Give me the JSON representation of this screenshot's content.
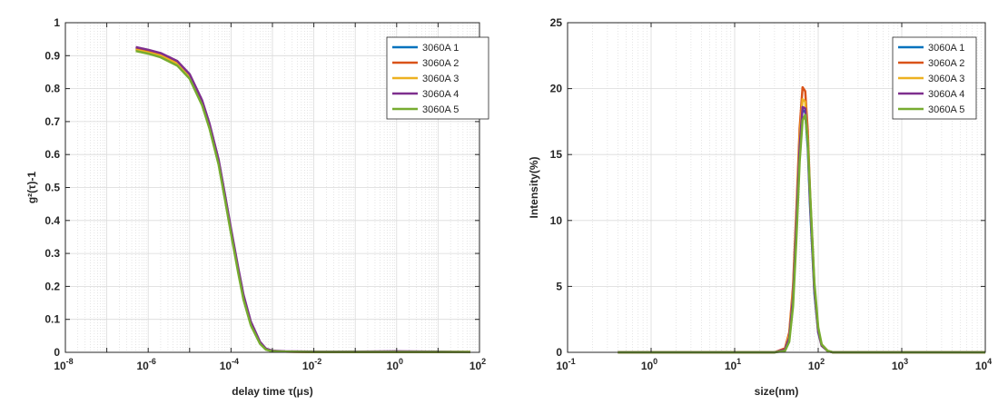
{
  "chart_data": [
    {
      "type": "line",
      "xscale": "log",
      "xlabel": "delay time  τ(μs)",
      "ylabel": "g²(τ)-1",
      "xlim": [
        1e-08,
        100
      ],
      "ylim": [
        0,
        1
      ],
      "grid": true,
      "legend_position": "top-right",
      "x_ticks": [
        {
          "base": "10",
          "exp": "-8"
        },
        {
          "base": "10",
          "exp": "-6"
        },
        {
          "base": "10",
          "exp": "-4"
        },
        {
          "base": "10",
          "exp": "-2"
        },
        {
          "base": "10",
          "exp": "0"
        },
        {
          "base": "10",
          "exp": "2"
        }
      ],
      "y_ticks": [
        "0",
        "0.1",
        "0.2",
        "0.3",
        "0.4",
        "0.5",
        "0.6",
        "0.7",
        "0.8",
        "0.9",
        "1"
      ],
      "series": [
        {
          "name": "3060A 1",
          "color": "#0072BD",
          "x": [
            5e-07,
            1e-06,
            2e-06,
            5e-06,
            1e-05,
            2e-05,
            3e-05,
            5e-05,
            7e-05,
            0.0001,
            0.00015,
            0.0002,
            0.0003,
            0.0005,
            0.0007,
            0.001,
            0.002,
            0.01,
            0.1,
            1,
            15
          ],
          "y": [
            0.923,
            0.915,
            0.905,
            0.88,
            0.84,
            0.76,
            0.69,
            0.58,
            0.48,
            0.37,
            0.25,
            0.17,
            0.09,
            0.03,
            0.01,
            0.004,
            0.002,
            0.002,
            0.001,
            0.002,
            0.001
          ]
        },
        {
          "name": "3060A 2",
          "color": "#D95319",
          "x": [
            5e-07,
            1e-06,
            2e-06,
            5e-06,
            1e-05,
            2e-05,
            3e-05,
            5e-05,
            7e-05,
            0.0001,
            0.00015,
            0.0002,
            0.0003,
            0.0005,
            0.0007,
            0.001,
            0.002,
            0.01,
            0.1,
            1,
            60
          ],
          "y": [
            0.92,
            0.912,
            0.902,
            0.878,
            0.838,
            0.758,
            0.688,
            0.578,
            0.478,
            0.368,
            0.248,
            0.168,
            0.088,
            0.03,
            0.01,
            0.004,
            0.002,
            0.001,
            0.001,
            0.001,
            0.001
          ]
        },
        {
          "name": "3060A 3",
          "color": "#EDB120",
          "x": [
            5e-07,
            1e-06,
            2e-06,
            5e-06,
            1e-05,
            2e-05,
            3e-05,
            5e-05,
            7e-05,
            0.0001,
            0.00015,
            0.0002,
            0.0003,
            0.0005,
            0.0007,
            0.001,
            0.002,
            0.01,
            0.1,
            1,
            60
          ],
          "y": [
            0.918,
            0.91,
            0.9,
            0.876,
            0.836,
            0.756,
            0.686,
            0.576,
            0.476,
            0.366,
            0.246,
            0.166,
            0.087,
            0.029,
            0.01,
            0.004,
            0.002,
            0.001,
            0.001,
            0.001,
            0.001
          ]
        },
        {
          "name": "3060A 4",
          "color": "#7E2F8E",
          "x": [
            5e-07,
            1e-06,
            2e-06,
            5e-06,
            1e-05,
            2e-05,
            3e-05,
            5e-05,
            7e-05,
            0.0001,
            0.00015,
            0.0002,
            0.0003,
            0.0005,
            0.0007,
            0.001,
            0.002,
            0.01,
            0.1,
            1,
            60
          ],
          "y": [
            0.926,
            0.918,
            0.908,
            0.884,
            0.844,
            0.765,
            0.695,
            0.585,
            0.485,
            0.375,
            0.255,
            0.175,
            0.093,
            0.032,
            0.011,
            0.005,
            0.003,
            0.002,
            0.002,
            0.003,
            0.001
          ]
        },
        {
          "name": "3060A 5",
          "color": "#77AC30",
          "x": [
            5e-07,
            1e-06,
            2e-06,
            5e-06,
            1e-05,
            2e-05,
            3e-05,
            5e-05,
            7e-05,
            0.0001,
            0.00015,
            0.0002,
            0.0003,
            0.0005,
            0.0007,
            0.001,
            0.002,
            0.01,
            0.1,
            1,
            60
          ],
          "y": [
            0.914,
            0.906,
            0.895,
            0.87,
            0.83,
            0.75,
            0.68,
            0.57,
            0.47,
            0.36,
            0.24,
            0.16,
            0.082,
            0.026,
            0.008,
            0.003,
            0.002,
            0.001,
            0.001,
            0.001,
            0.001
          ]
        }
      ]
    },
    {
      "type": "line",
      "xscale": "log",
      "xlabel": "size(nm)",
      "ylabel": "Intensity(%)",
      "xlim": [
        0.1,
        10000
      ],
      "ylim": [
        0,
        25
      ],
      "grid": true,
      "legend_position": "top-right",
      "x_ticks": [
        {
          "base": "10",
          "exp": "-1"
        },
        {
          "base": "10",
          "exp": "0"
        },
        {
          "base": "10",
          "exp": "1"
        },
        {
          "base": "10",
          "exp": "2"
        },
        {
          "base": "10",
          "exp": "3"
        },
        {
          "base": "10",
          "exp": "4"
        }
      ],
      "y_ticks": [
        "0",
        "5",
        "10",
        "15",
        "20",
        "25"
      ],
      "series": [
        {
          "name": "3060A 1",
          "color": "#0072BD",
          "x": [
            0.4,
            10,
            30,
            40,
            45,
            50,
            55,
            60,
            65,
            70,
            75,
            80,
            90,
            100,
            110,
            130,
            150,
            200,
            10000
          ],
          "y": [
            0,
            0,
            0,
            0.2,
            1.2,
            4.5,
            10.5,
            16.0,
            18.4,
            18.2,
            15.5,
            11.0,
            4.5,
            1.5,
            0.5,
            0.1,
            0,
            0,
            0
          ]
        },
        {
          "name": "3060A 2",
          "color": "#D95319",
          "x": [
            0.4,
            10,
            30,
            40,
            45,
            50,
            55,
            60,
            65,
            70,
            75,
            80,
            90,
            100,
            110,
            130,
            150,
            200,
            10000
          ],
          "y": [
            0,
            0,
            0,
            0.3,
            1.5,
            5.0,
            11.0,
            17.0,
            20.1,
            19.8,
            16.8,
            12.0,
            5.0,
            1.7,
            0.6,
            0.1,
            0,
            0,
            0
          ]
        },
        {
          "name": "3060A 3",
          "color": "#EDB120",
          "x": [
            0.4,
            10,
            30,
            40,
            45,
            50,
            55,
            60,
            65,
            70,
            75,
            80,
            90,
            100,
            110,
            130,
            150,
            200,
            10000
          ],
          "y": [
            0,
            0,
            0,
            0.2,
            1.3,
            4.6,
            10.6,
            16.3,
            19.2,
            19.0,
            16.2,
            11.6,
            4.8,
            1.6,
            0.5,
            0.1,
            0,
            0,
            0
          ]
        },
        {
          "name": "3060A 4",
          "color": "#7E2F8E",
          "x": [
            0.4,
            10,
            30,
            40,
            45,
            50,
            55,
            60,
            65,
            70,
            75,
            80,
            90,
            100,
            110,
            130,
            150,
            200,
            10000
          ],
          "y": [
            0,
            0,
            0,
            0.2,
            1.1,
            4.2,
            10.0,
            15.6,
            18.6,
            18.5,
            15.9,
            11.4,
            4.8,
            1.6,
            0.5,
            0.1,
            0,
            0,
            0
          ]
        },
        {
          "name": "3060A 5",
          "color": "#77AC30",
          "x": [
            0.4,
            10,
            30,
            40,
            45,
            50,
            55,
            60,
            65,
            70,
            75,
            80,
            90,
            100,
            110,
            130,
            150,
            200,
            10000
          ],
          "y": [
            0,
            0,
            0,
            0.1,
            0.8,
            3.5,
            8.8,
            14.5,
            17.6,
            18.0,
            16.0,
            12.0,
            5.3,
            1.9,
            0.6,
            0.1,
            0,
            0,
            0
          ]
        }
      ]
    }
  ]
}
